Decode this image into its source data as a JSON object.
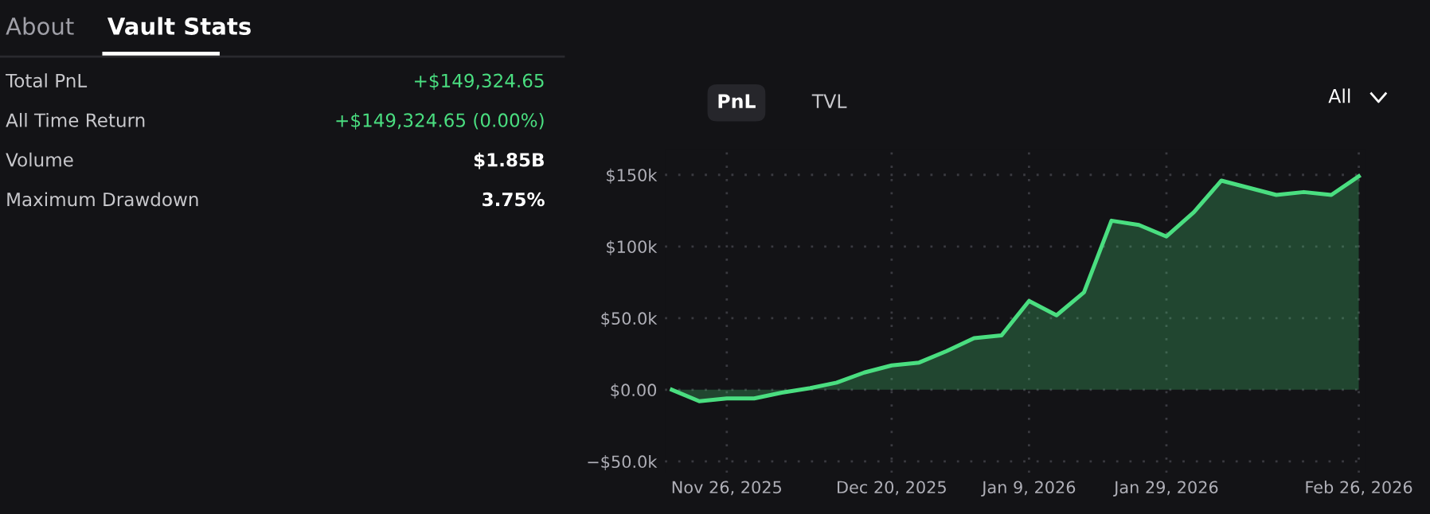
{
  "chart_data": [
    {
      "type": "other",
      "annotations": [
        "About",
        "Vault Stats",
        "Total PnL",
        "+$149,324.65",
        "All Time Return",
        "+$149,324.65 (0.00%)",
        "Volume",
        "$1.85B",
        "Maximum Drawdown",
        "3.75%"
      ],
      "colors": [
        "#a0a0a8",
        "#ffffff",
        "#c8c8cc",
        "#4ade80",
        "#c8c8cc",
        "#4ade80",
        "#c8c8cc",
        "#ffffff",
        "#c8c8cc",
        "#ffffff"
      ]
    },
    {
      "type": "area",
      "annotations": [
        "PnL",
        "TVL",
        "All"
      ],
      "x": [
        "2025-11-18",
        "2025-11-22",
        "2025-11-26",
        "2025-11-30",
        "2025-12-04",
        "2025-12-08",
        "2025-12-12",
        "2025-12-16",
        "2025-12-20",
        "2025-12-24",
        "2025-12-28",
        "2026-01-01",
        "2026-01-05",
        "2026-01-09",
        "2026-01-13",
        "2026-01-17",
        "2026-01-21",
        "2026-01-25",
        "2026-01-29",
        "2026-02-02",
        "2026-02-06",
        "2026-02-10",
        "2026-02-14",
        "2026-02-18",
        "2026-02-22",
        "2026-02-26"
      ],
      "series": [
        {
          "color": "#4ade80",
          "values": [
            0,
            -8000,
            -6000,
            -6000,
            -2000,
            1000,
            5000,
            12000,
            17000,
            19000,
            27000,
            36000,
            38000,
            62000,
            52000,
            68000,
            118000,
            115000,
            107000,
            124000,
            146000,
            141000,
            136000,
            138000,
            136000,
            149000
          ]
        }
      ],
      "xlim": [
        "2025-11-17",
        "2026-02-27"
      ],
      "xticks": [
        {
          "value": "2025-11-26",
          "label": "Nov 26, 2025"
        },
        {
          "value": "2025-12-20",
          "label": "Dec 20, 2025"
        },
        {
          "value": "2026-01-09",
          "label": "Jan 9, 2026"
        },
        {
          "value": "2026-01-29",
          "label": "Jan 29, 2026"
        },
        {
          "value": "2026-02-26",
          "label": "Feb 26, 2026"
        }
      ],
      "ylim": [
        -58000,
        168000
      ],
      "yticks": [
        {
          "value": -50000,
          "label": "−$50.0k"
        },
        {
          "value": 0,
          "label": "$0.00"
        },
        {
          "value": 50000,
          "label": "$50.0k"
        },
        {
          "value": 100000,
          "label": "$100k"
        },
        {
          "value": 150000,
          "label": "$150k"
        }
      ],
      "grid": true,
      "line_style": "solid",
      "marker": "none"
    }
  ]
}
